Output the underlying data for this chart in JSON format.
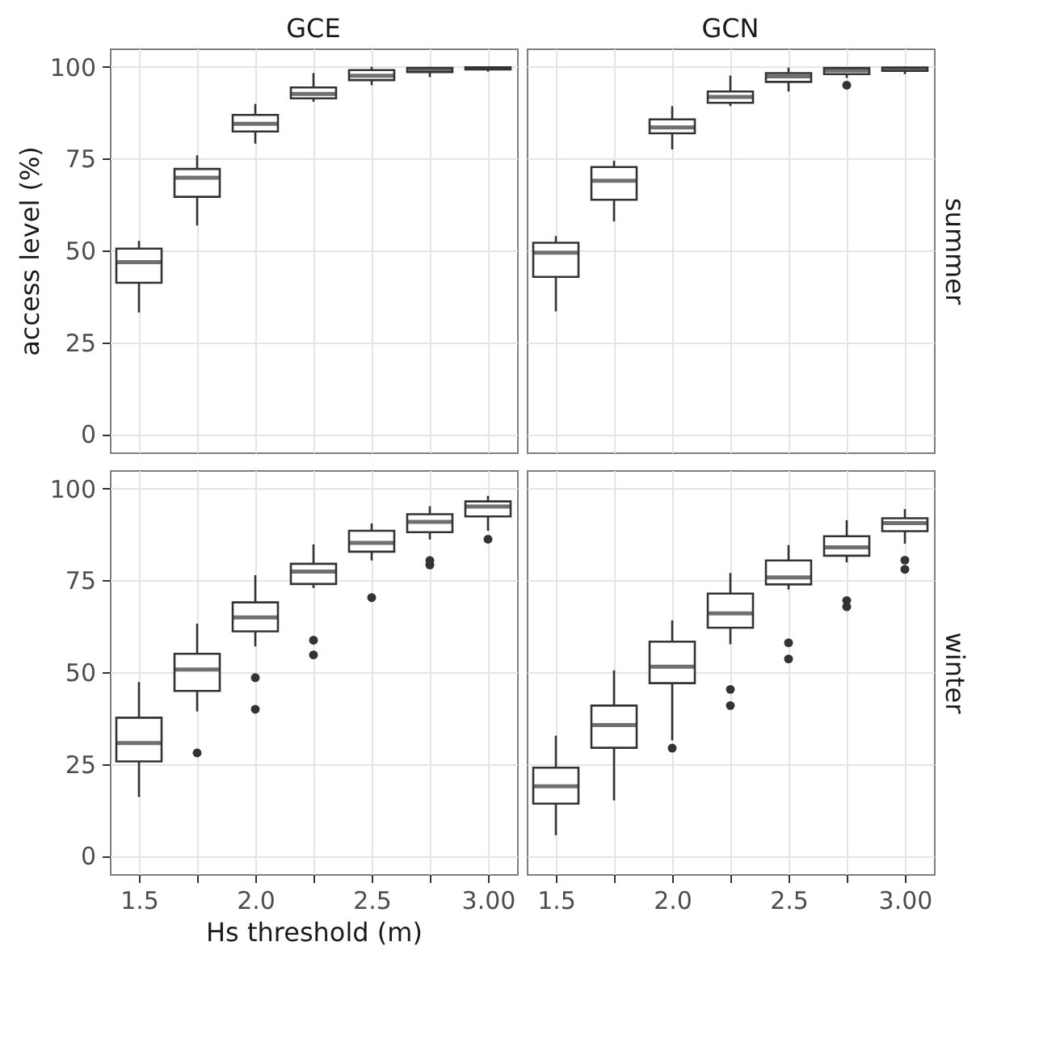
{
  "chart_data": [
    {
      "type": "box",
      "title": "GCE",
      "ylabel": "access level (%)",
      "categories": [
        "1.5",
        null,
        "2.0",
        null,
        "2.5",
        null,
        "3.00"
      ],
      "ylim": [
        -5,
        105
      ],
      "yticks": [
        0,
        25,
        50,
        75,
        100
      ],
      "grid": true,
      "tick_labels": "y",
      "boxes": [
        {
          "low": 33.1,
          "q1": 41.2,
          "median": 46.8,
          "q3": 50.5,
          "high": 52.6
        },
        {
          "low": 56.8,
          "q1": 64.6,
          "median": 69.8,
          "q3": 72.2,
          "high": 75.9
        },
        {
          "low": 79.1,
          "q1": 82.4,
          "median": 84.5,
          "q3": 86.9,
          "high": 89.9
        },
        {
          "low": 90.5,
          "q1": 91.4,
          "median": 92.6,
          "q3": 94.4,
          "high": 98.3
        },
        {
          "low": 95.0,
          "q1": 96.4,
          "median": 97.6,
          "q3": 99.1,
          "high": 100
        },
        {
          "low": 97.2,
          "q1": 98.6,
          "median": 99.2,
          "q3": 99.7,
          "high": 100
        },
        {
          "low": 98.7,
          "q1": 99.3,
          "median": 99.6,
          "q3": 99.9,
          "high": 100
        }
      ]
    },
    {
      "type": "box",
      "title": "GCN",
      "y2label": "summer",
      "categories": [
        "1.5",
        null,
        "2.0",
        null,
        "2.5",
        null,
        "3.00"
      ],
      "ylim": [
        -5,
        105
      ],
      "yticks": [
        0,
        25,
        50,
        75,
        100
      ],
      "grid": true,
      "tick_labels": false,
      "marker": "circle",
      "boxes": [
        {
          "low": 33.4,
          "q1": 42.8,
          "median": 49.4,
          "q3": 52.1,
          "high": 53.9
        },
        {
          "low": 57.9,
          "q1": 63.8,
          "median": 69.0,
          "q3": 72.7,
          "high": 74.4
        },
        {
          "low": 77.5,
          "q1": 81.9,
          "median": 83.5,
          "q3": 85.7,
          "high": 89.3
        },
        {
          "low": 89.3,
          "q1": 90.2,
          "median": 91.8,
          "q3": 93.3,
          "high": 97.6
        },
        {
          "low": 93.3,
          "q1": 95.9,
          "median": 97.4,
          "q3": 98.3,
          "high": 99.8
        },
        {
          "low": 97.0,
          "q1": 98.0,
          "median": 99.0,
          "q3": 99.7,
          "high": 99.8,
          "outliers": [
            95.0
          ]
        },
        {
          "low": 98.0,
          "q1": 98.9,
          "median": 99.3,
          "q3": 99.8,
          "high": 100
        }
      ]
    },
    {
      "type": "box",
      "xlabel": "Hs threshold (m)",
      "categories": [
        "1.5",
        null,
        "2.0",
        null,
        "2.5",
        null,
        "3.00"
      ],
      "ylim": [
        -5,
        105
      ],
      "yticks": [
        0,
        25,
        50,
        75,
        100
      ],
      "grid": true,
      "marker": "circle",
      "boxes": [
        {
          "low": 16.0,
          "q1": 25.7,
          "median": 30.7,
          "q3": 37.6,
          "high": 47.3
        },
        {
          "low": 39.3,
          "q1": 44.9,
          "median": 50.7,
          "q3": 55.0,
          "high": 63.2,
          "outliers": [
            28.0
          ]
        },
        {
          "low": 57.0,
          "q1": 61.1,
          "median": 64.9,
          "q3": 69.0,
          "high": 76.4,
          "outliers": [
            48.5,
            39.9
          ]
        },
        {
          "low": 72.9,
          "q1": 74.0,
          "median": 77.4,
          "q3": 79.5,
          "high": 84.8,
          "outliers": [
            58.7,
            54.7
          ]
        },
        {
          "low": 80.4,
          "q1": 82.8,
          "median": 85.2,
          "q3": 88.5,
          "high": 90.5,
          "outliers": [
            70.3
          ]
        },
        {
          "low": 86.1,
          "q1": 88.1,
          "median": 90.9,
          "q3": 93.0,
          "high": 95.2,
          "outliers": [
            80.4,
            79.2
          ]
        },
        {
          "low": 88.5,
          "q1": 92.4,
          "median": 95.1,
          "q3": 96.5,
          "high": 98.0,
          "outliers": [
            86.2
          ]
        }
      ]
    },
    {
      "type": "box",
      "y2label": "winter",
      "categories": [
        "1.5",
        null,
        "2.0",
        null,
        "2.5",
        null,
        "3.00"
      ],
      "ylim": [
        -5,
        105
      ],
      "yticks": [
        0,
        25,
        50,
        75,
        100
      ],
      "grid": true,
      "tick_labels": "x",
      "marker": "circle",
      "boxes": [
        {
          "low": 5.6,
          "q1": 14.2,
          "median": 18.9,
          "q3": 24.0,
          "high": 32.7
        },
        {
          "low": 15.1,
          "q1": 29.4,
          "median": 35.6,
          "q3": 40.9,
          "high": 50.5
        },
        {
          "low": 31.4,
          "q1": 47.0,
          "median": 51.5,
          "q3": 58.3,
          "high": 64.1,
          "outliers": [
            29.3
          ]
        },
        {
          "low": 57.6,
          "q1": 62.1,
          "median": 66.0,
          "q3": 71.4,
          "high": 77.0,
          "outliers": [
            45.3,
            40.9
          ]
        },
        {
          "low": 72.5,
          "q1": 73.9,
          "median": 75.8,
          "q3": 80.4,
          "high": 84.6,
          "outliers": [
            58.0,
            53.6
          ]
        },
        {
          "low": 79.9,
          "q1": 81.7,
          "median": 84.0,
          "q3": 87.0,
          "high": 91.4,
          "outliers": [
            69.5,
            67.8
          ]
        },
        {
          "low": 85.0,
          "q1": 88.4,
          "median": 90.6,
          "q3": 91.9,
          "high": 94.4,
          "outliers": [
            80.5,
            78.0
          ]
        }
      ]
    }
  ]
}
